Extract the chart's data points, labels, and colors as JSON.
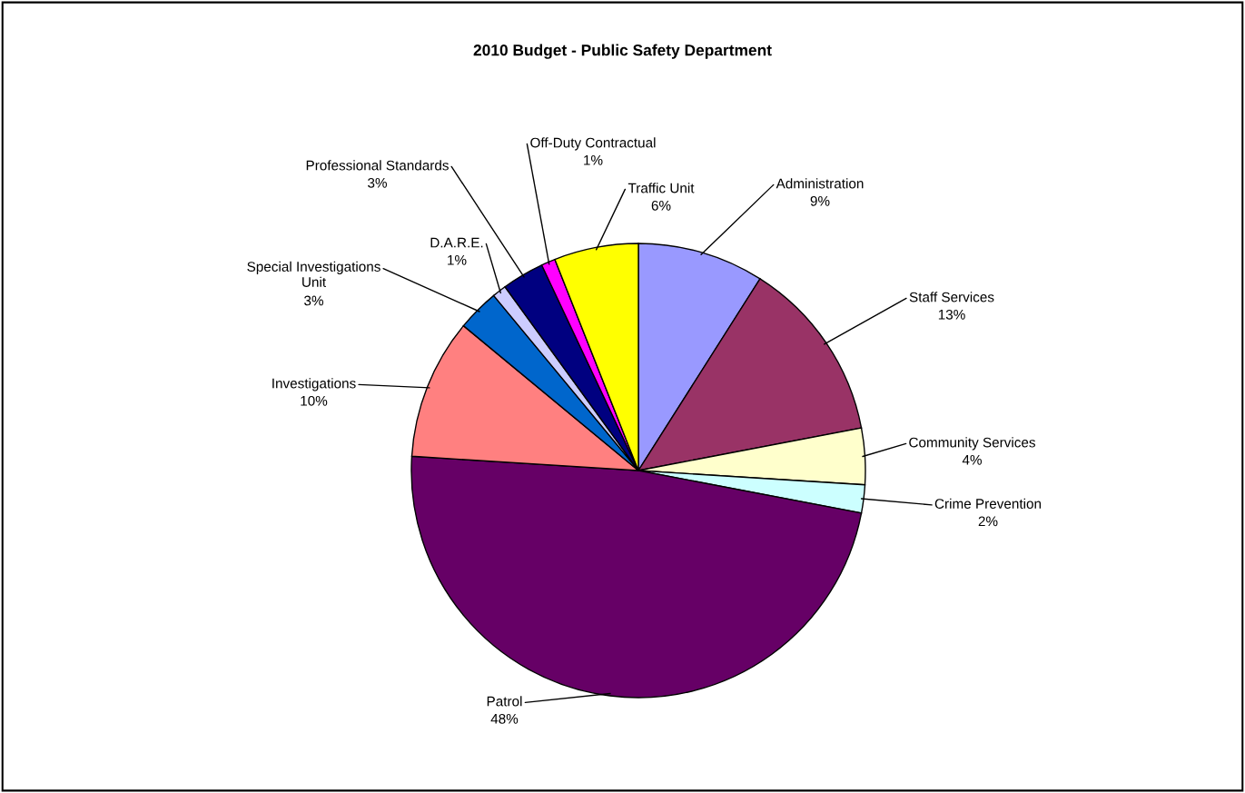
{
  "chart_data": {
    "type": "pie",
    "title": "2010 Budget - Public Safety Department",
    "categories": [
      "Administration",
      "Staff Services",
      "Community Services",
      "Crime Prevention",
      "Patrol",
      "Investigations",
      "Special Investigations Unit",
      "D.A.R.E.",
      "Professional Standards",
      "Off-Duty Contractual",
      "Traffic Unit"
    ],
    "values": [
      9,
      13,
      4,
      2,
      48,
      10,
      3,
      1,
      3,
      1,
      6
    ],
    "colors": [
      "#9999ff",
      "#993366",
      "#ffffcc",
      "#ccffff",
      "#660066",
      "#ff8080",
      "#0066cc",
      "#ccccff",
      "#000080",
      "#ff00ff",
      "#ffff00"
    ],
    "value_labels": [
      "9%",
      "13%",
      "4%",
      "2%",
      "48%",
      "10%",
      "3%",
      "1%",
      "3%",
      "1%",
      "6%"
    ],
    "legend": false
  }
}
